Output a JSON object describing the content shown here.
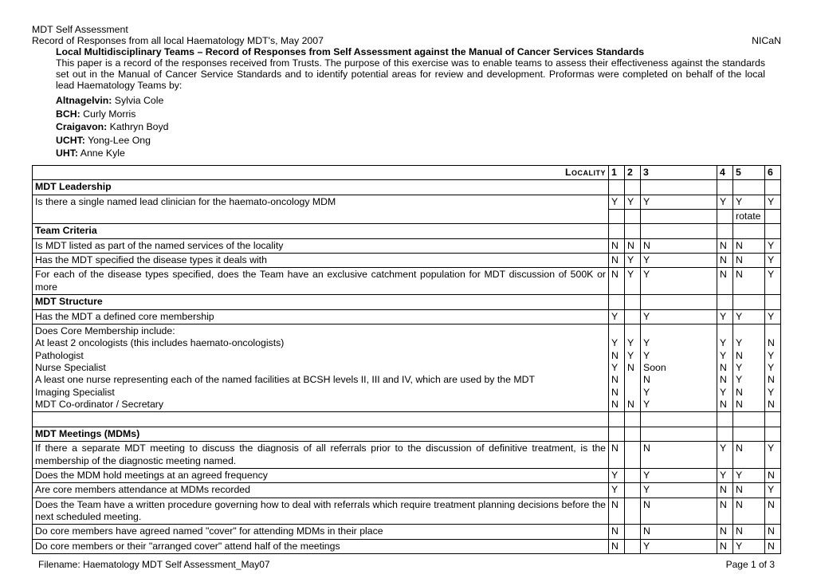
{
  "title1": "MDT Self Assessment",
  "title2": "Record of Responses from all local Haematology MDT's, May 2007",
  "org": "NICaN",
  "intro_bold": "Local Multidisciplinary Teams – Record of Responses from Self Assessment against the Manual of Cancer Services Standards",
  "intro_body": "This paper is a record of the responses  received from Trusts.  The purpose of this exercise was to enable teams to assess their effectiveness against the standards set out in the Manual of Cancer Service Standards and to identify potential areas for review and development.  Proformas were completed on behalf of the local lead Haematology Teams by:",
  "teams": [
    {
      "label": "Altnagelvin:",
      "name": " Sylvia Cole"
    },
    {
      "label": "BCH:",
      "name": " Curly Morris"
    },
    {
      "label": "Craigavon:",
      "name": " Kathryn Boyd"
    },
    {
      "label": "UCHT:",
      "name": " Yong-Lee Ong"
    },
    {
      "label": "UHT:",
      "name": " Anne Kyle"
    }
  ],
  "locality_label": "Locality",
  "cols": [
    "1",
    "2",
    "3",
    "4",
    "5",
    "6"
  ],
  "rows": [
    {
      "type": "section",
      "text": "MDT Leadership"
    },
    {
      "type": "q",
      "text": "Is there a single named lead clinician for the haemato-oncology MDM",
      "v": [
        "Y",
        "Y",
        "Y",
        "Y",
        "Y",
        "Y"
      ],
      "v2": [
        "",
        "",
        "",
        "",
        "rotate",
        ""
      ]
    },
    {
      "type": "section",
      "text": "Team Criteria"
    },
    {
      "type": "q",
      "text": "Is MDT listed as part of the named services of the locality",
      "v": [
        "N",
        "N",
        "N",
        "N",
        "N",
        "Y"
      ]
    },
    {
      "type": "q",
      "text": "Has the MDT specified the disease types it deals with",
      "v": [
        "N",
        "Y",
        "Y",
        "N",
        "N",
        "Y"
      ]
    },
    {
      "type": "q",
      "text": "For each of the disease types specified, does the Team have an exclusive catchment population for MDT discussion of 500K or more",
      "v": [
        "N",
        "Y",
        "Y",
        "N",
        "N",
        "Y"
      ]
    },
    {
      "type": "section",
      "text": "MDT Structure"
    },
    {
      "type": "q",
      "text": "Has the MDT a defined core membership",
      "v": [
        "Y",
        "",
        "Y",
        "Y",
        "Y",
        "Y"
      ]
    },
    {
      "type": "multi",
      "lines": [
        {
          "text": "Does Core Membership include:",
          "v": [
            "",
            "",
            "",
            "",
            "",
            ""
          ]
        },
        {
          "text": "At least 2 oncologists (this includes haemato-oncologists)",
          "v": [
            "Y",
            "Y",
            "Y",
            "Y",
            "Y",
            "N"
          ]
        },
        {
          "text": "Pathologist",
          "v": [
            "N",
            "Y",
            "Y",
            "Y",
            "N",
            "Y"
          ]
        },
        {
          "text": "Nurse Specialist",
          "v": [
            "Y",
            "N",
            "Soon",
            "N",
            "Y",
            "Y"
          ]
        },
        {
          "text": "A least one nurse representing each of the named facilities at BCSH levels II, III and IV, which are used by the MDT",
          "v": [
            "N",
            "",
            "N",
            "N",
            "Y",
            "N"
          ]
        },
        {
          "text": "Imaging Specialist",
          "v": [
            "N",
            "",
            "Y",
            "Y",
            "N",
            "Y"
          ]
        },
        {
          "text": "MDT Co-ordinator / Secretary",
          "v": [
            "N",
            "N",
            "Y",
            "N",
            "N",
            "N"
          ]
        }
      ]
    },
    {
      "type": "blank"
    },
    {
      "type": "section",
      "text": "MDT Meetings (MDMs)"
    },
    {
      "type": "q",
      "text": "If there a separate MDT meeting to discuss the diagnosis of all referrals prior to the discussion of definitive treatment, is the membership of the diagnostic meeting named.",
      "v": [
        "N",
        "",
        "N",
        "Y",
        "N",
        "Y"
      ]
    },
    {
      "type": "q",
      "text": "Does the MDM hold meetings at an agreed frequency",
      "v": [
        "Y",
        "",
        "Y",
        "Y",
        "Y",
        "N"
      ]
    },
    {
      "type": "q",
      "text": "Are core members attendance at MDMs recorded",
      "v": [
        "Y",
        "",
        "Y",
        "N",
        "N",
        "Y"
      ]
    },
    {
      "type": "q",
      "text": "Does the Team have a written procedure governing how to deal with referrals which require treatment planning decisions before the next scheduled meeting.",
      "v": [
        "N",
        "",
        "N",
        "N",
        "N",
        "N"
      ]
    },
    {
      "type": "q",
      "text": "Do core members have agreed named \"cover\" for attending MDMs in their place",
      "v": [
        "N",
        "",
        "N",
        "N",
        "N",
        "N"
      ]
    },
    {
      "type": "q",
      "text": "Do core members or their \"arranged cover\" attend half of the meetings",
      "v": [
        "N",
        "",
        "Y",
        "N",
        "Y",
        "N"
      ]
    }
  ],
  "footer_left": "Filename: Haematology MDT Self Assessment_May07",
  "footer_right_prefix": "Page ",
  "footer_right_page": "1 of 3"
}
